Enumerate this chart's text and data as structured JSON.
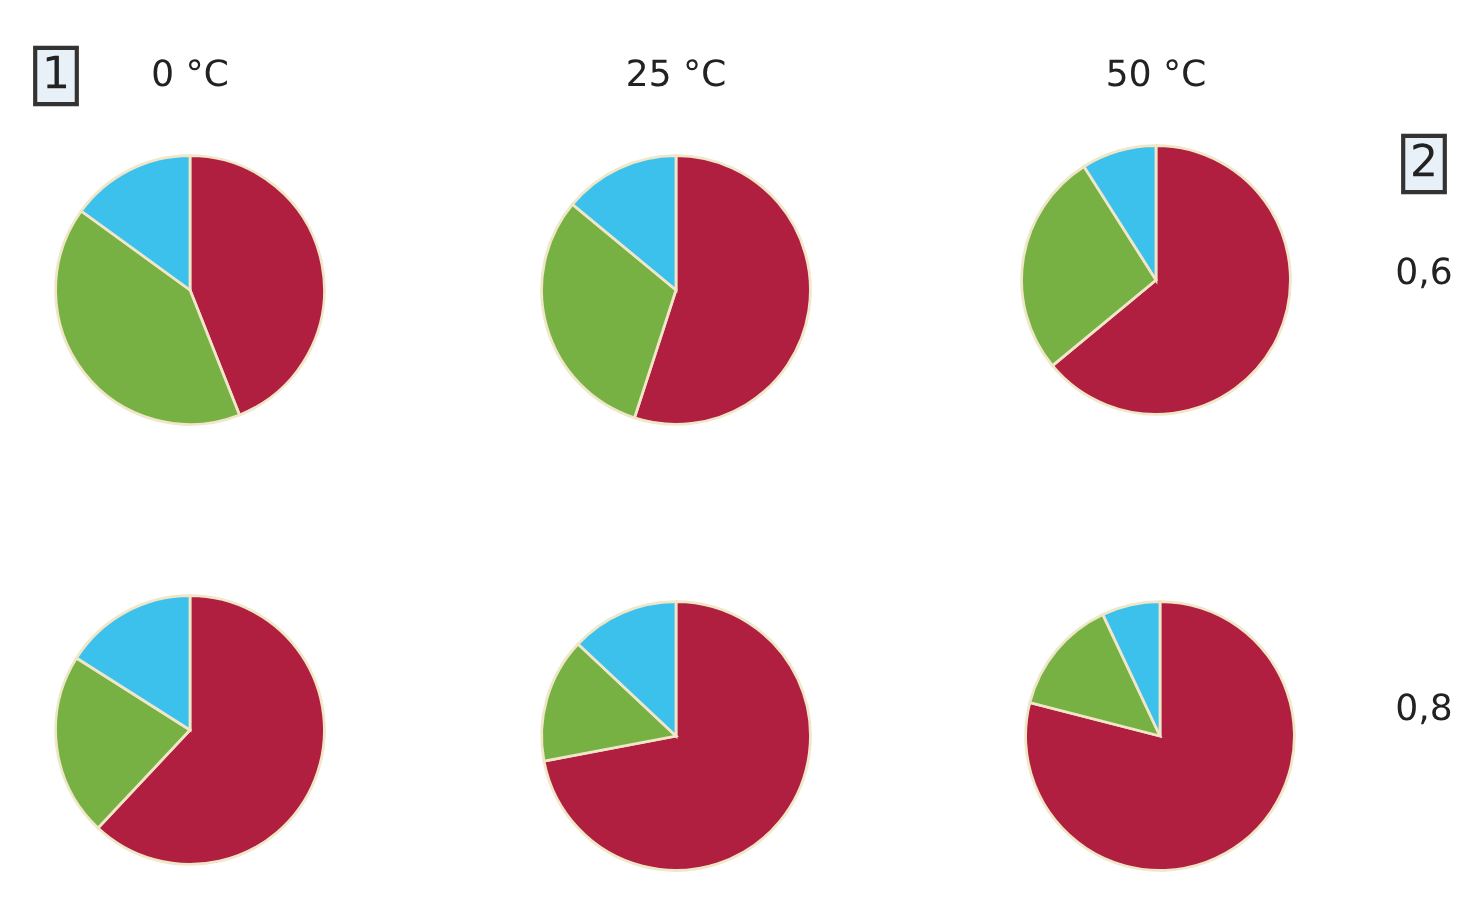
{
  "chart_data": [
    {
      "type": "pie",
      "title": "0 °C",
      "categories": [
        null,
        null,
        null
      ],
      "values": [
        44,
        41,
        15
      ],
      "colors": [
        "#b01f3f",
        "#77b043",
        "#3cc1ec"
      ],
      "annotations": [
        "1"
      ]
    },
    {
      "type": "pie",
      "title": "25 °C",
      "categories": [
        null,
        null,
        null
      ],
      "values": [
        55,
        31,
        14
      ],
      "colors": [
        "#b01f3f",
        "#77b043",
        "#3cc1ec"
      ]
    },
    {
      "type": "pie",
      "title": "50 °C",
      "categories": [
        null,
        null,
        null
      ],
      "values": [
        64,
        27,
        9
      ],
      "colors": [
        "#b01f3f",
        "#77b043",
        "#3cc1ec"
      ],
      "annotations": [
        "2",
        "0,6"
      ]
    },
    {
      "type": "pie",
      "categories": [
        null,
        null,
        null
      ],
      "values": [
        62,
        22,
        16
      ],
      "colors": [
        "#b01f3f",
        "#77b043",
        "#3cc1ec"
      ]
    },
    {
      "type": "pie",
      "categories": [
        null,
        null,
        null
      ],
      "values": [
        72,
        15,
        13
      ],
      "colors": [
        "#b01f3f",
        "#77b043",
        "#3cc1ec"
      ]
    },
    {
      "type": "pie",
      "categories": [
        null,
        null,
        null
      ],
      "values": [
        79,
        14,
        7
      ],
      "colors": [
        "#b01f3f",
        "#77b043",
        "#3cc1ec"
      ],
      "annotations": [
        "0,8"
      ]
    }
  ]
}
